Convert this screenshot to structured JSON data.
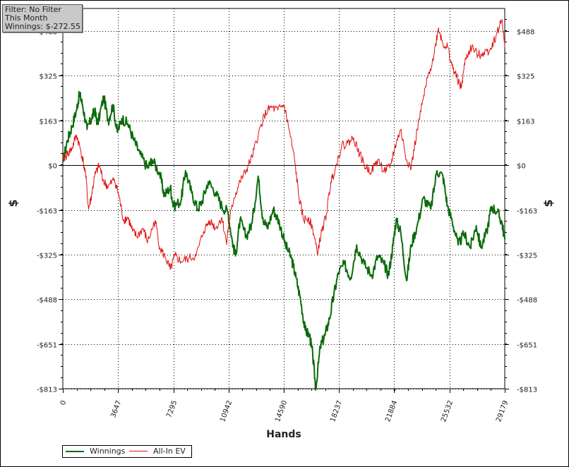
{
  "info": {
    "filter": "Filter: No Filter",
    "period": "This Month",
    "winnings": "Winnings: $-272.55"
  },
  "colors": {
    "winnings": "#0b6b0b",
    "allin_ev": "#e01010",
    "zero_line": "#000000",
    "grid": "#000000"
  },
  "chart_data": {
    "type": "line",
    "xlabel": "Hands",
    "ylabel_left": "$",
    "ylabel_right": "$",
    "xlim": [
      0,
      29179
    ],
    "ylim": [
      -813,
      570
    ],
    "x_ticks": [
      0,
      3647,
      7295,
      10942,
      14590,
      18237,
      21884,
      25532,
      29179
    ],
    "y_ticks": [
      488,
      325,
      163,
      0,
      -163,
      -325,
      -488,
      -651,
      -813
    ],
    "y_tick_labels": [
      "$488",
      "$325",
      "$163",
      "$0",
      "-$163",
      "-$325",
      "-$488",
      "-$651",
      "-$813"
    ],
    "grid": true,
    "legend_position": "bottom-left",
    "series": [
      {
        "name": "Winnings",
        "color": "#0b6b0b",
        "points": [
          [
            0,
            10
          ],
          [
            300,
            90
          ],
          [
            600,
            140
          ],
          [
            900,
            200
          ],
          [
            1100,
            260
          ],
          [
            1300,
            220
          ],
          [
            1600,
            130
          ],
          [
            1900,
            170
          ],
          [
            2100,
            200
          ],
          [
            2300,
            150
          ],
          [
            2700,
            250
          ],
          [
            3000,
            160
          ],
          [
            3300,
            220
          ],
          [
            3600,
            120
          ],
          [
            3900,
            170
          ],
          [
            4300,
            150
          ],
          [
            4700,
            90
          ],
          [
            5100,
            40
          ],
          [
            5600,
            -10
          ],
          [
            5900,
            20
          ],
          [
            6400,
            -30
          ],
          [
            6700,
            -110
          ],
          [
            7100,
            -80
          ],
          [
            7300,
            -150
          ],
          [
            7800,
            -130
          ],
          [
            8100,
            -20
          ],
          [
            8500,
            -100
          ],
          [
            8900,
            -160
          ],
          [
            9200,
            -130
          ],
          [
            9600,
            -60
          ],
          [
            10100,
            -100
          ],
          [
            10500,
            -150
          ],
          [
            10900,
            -170
          ],
          [
            11200,
            -280
          ],
          [
            11400,
            -330
          ],
          [
            11700,
            -200
          ],
          [
            12100,
            -260
          ],
          [
            12500,
            -210
          ],
          [
            12900,
            -40
          ],
          [
            13200,
            -190
          ],
          [
            13500,
            -230
          ],
          [
            13900,
            -160
          ],
          [
            14300,
            -210
          ],
          [
            14700,
            -290
          ],
          [
            15100,
            -340
          ],
          [
            15400,
            -410
          ],
          [
            15700,
            -490
          ],
          [
            16000,
            -600
          ],
          [
            16300,
            -620
          ],
          [
            16500,
            -690
          ],
          [
            16700,
            -813
          ],
          [
            17000,
            -660
          ],
          [
            17300,
            -620
          ],
          [
            17600,
            -560
          ],
          [
            17900,
            -470
          ],
          [
            18200,
            -390
          ],
          [
            18600,
            -360
          ],
          [
            19000,
            -410
          ],
          [
            19400,
            -290
          ],
          [
            19900,
            -360
          ],
          [
            20400,
            -400
          ],
          [
            20800,
            -330
          ],
          [
            21200,
            -360
          ],
          [
            21500,
            -400
          ],
          [
            21800,
            -290
          ],
          [
            22000,
            -200
          ],
          [
            22300,
            -240
          ],
          [
            22700,
            -420
          ],
          [
            23000,
            -290
          ],
          [
            23400,
            -220
          ],
          [
            23800,
            -120
          ],
          [
            24300,
            -160
          ],
          [
            24700,
            -20
          ],
          [
            25100,
            -40
          ],
          [
            25400,
            -150
          ],
          [
            25700,
            -200
          ],
          [
            26100,
            -290
          ],
          [
            26500,
            -250
          ],
          [
            26900,
            -300
          ],
          [
            27300,
            -220
          ],
          [
            27600,
            -300
          ],
          [
            28000,
            -240
          ],
          [
            28300,
            -150
          ],
          [
            28700,
            -170
          ],
          [
            29000,
            -210
          ],
          [
            29179,
            -270
          ]
        ]
      },
      {
        "name": "All-In EV",
        "color": "#e01010",
        "points": [
          [
            0,
            20
          ],
          [
            300,
            40
          ],
          [
            600,
            60
          ],
          [
            900,
            110
          ],
          [
            1200,
            50
          ],
          [
            1500,
            -30
          ],
          [
            1700,
            -160
          ],
          [
            1900,
            -110
          ],
          [
            2100,
            -40
          ],
          [
            2400,
            0
          ],
          [
            2700,
            -60
          ],
          [
            3000,
            -80
          ],
          [
            3400,
            -50
          ],
          [
            3700,
            -110
          ],
          [
            4000,
            -200
          ],
          [
            4300,
            -190
          ],
          [
            4600,
            -240
          ],
          [
            4900,
            -260
          ],
          [
            5300,
            -230
          ],
          [
            5600,
            -280
          ],
          [
            6100,
            -200
          ],
          [
            6400,
            -300
          ],
          [
            6800,
            -340
          ],
          [
            7100,
            -380
          ],
          [
            7400,
            -330
          ],
          [
            7800,
            -350
          ],
          [
            8300,
            -340
          ],
          [
            8800,
            -330
          ],
          [
            9300,
            -240
          ],
          [
            9700,
            -200
          ],
          [
            10100,
            -230
          ],
          [
            10500,
            -190
          ],
          [
            10800,
            -280
          ],
          [
            11000,
            -200
          ],
          [
            11300,
            -120
          ],
          [
            11700,
            -60
          ],
          [
            12100,
            -20
          ],
          [
            12500,
            30
          ],
          [
            12900,
            110
          ],
          [
            13300,
            180
          ],
          [
            13700,
            210
          ],
          [
            14200,
            200
          ],
          [
            14600,
            220
          ],
          [
            14900,
            140
          ],
          [
            15300,
            20
          ],
          [
            15600,
            -120
          ],
          [
            15900,
            -200
          ],
          [
            16200,
            -190
          ],
          [
            16500,
            -230
          ],
          [
            16800,
            -320
          ],
          [
            17100,
            -240
          ],
          [
            17400,
            -180
          ],
          [
            17700,
            -60
          ],
          [
            18000,
            -10
          ],
          [
            18400,
            70
          ],
          [
            18800,
            80
          ],
          [
            19200,
            100
          ],
          [
            19600,
            40
          ],
          [
            20000,
            -10
          ],
          [
            20400,
            -20
          ],
          [
            20800,
            20
          ],
          [
            21200,
            -20
          ],
          [
            21600,
            -10
          ],
          [
            21900,
            60
          ],
          [
            22300,
            130
          ],
          [
            22700,
            20
          ],
          [
            23000,
            -10
          ],
          [
            23400,
            130
          ],
          [
            23800,
            240
          ],
          [
            24100,
            320
          ],
          [
            24500,
            400
          ],
          [
            24800,
            500
          ],
          [
            25100,
            440
          ],
          [
            25400,
            430
          ],
          [
            25700,
            360
          ],
          [
            26000,
            320
          ],
          [
            26300,
            280
          ],
          [
            26600,
            390
          ],
          [
            27000,
            430
          ],
          [
            27400,
            400
          ],
          [
            27800,
            410
          ],
          [
            28200,
            420
          ],
          [
            28600,
            470
          ],
          [
            29000,
            530
          ],
          [
            29179,
            430
          ]
        ]
      }
    ]
  }
}
